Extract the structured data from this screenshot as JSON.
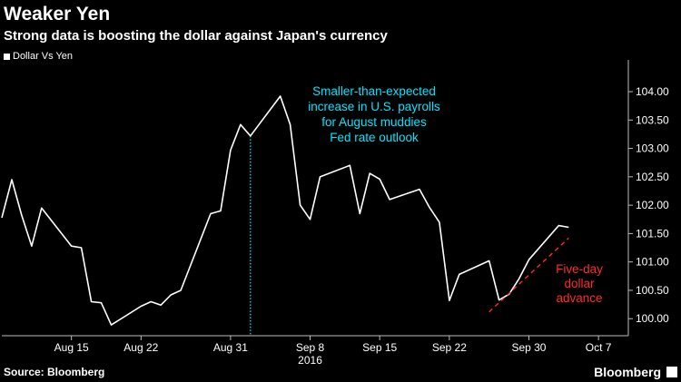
{
  "header": {
    "title": "Weaker Yen",
    "subtitle": "Strong data is boosting the dollar against Japan's currency"
  },
  "footer": {
    "source": "Source: Bloomberg",
    "brand": "Bloomberg"
  },
  "colors": {
    "background": "#000000",
    "line": "#ffffff",
    "annotation": "#00e5ff",
    "highlight": "#ff2a2a"
  },
  "chart_data": {
    "type": "line",
    "title": "Weaker Yen",
    "subtitle": "Strong data is boosting the dollar against Japan's currency",
    "legend": [
      "Dollar Vs Yen"
    ],
    "legend_position": "top-left",
    "grid": true,
    "ylim": [
      99.7,
      104.4
    ],
    "y_axis_side": "right",
    "y_ticks": [
      "100.00",
      "100.50",
      "101.00",
      "101.50",
      "102.00",
      "102.50",
      "103.00",
      "103.50",
      "104.00"
    ],
    "x_ticks": [
      "Aug 15",
      "Aug 22",
      "Aug 31",
      "Sep 8",
      "Sep 15",
      "Sep 22",
      "Sep 30",
      "Oct 7"
    ],
    "x_year_label": "2016",
    "series": [
      {
        "name": "Dollar Vs Yen",
        "x": [
          "Aug 8",
          "Aug 9",
          "Aug 10",
          "Aug 11",
          "Aug 12",
          "Aug 15",
          "Aug 16",
          "Aug 17",
          "Aug 18",
          "Aug 19",
          "Aug 22",
          "Aug 23",
          "Aug 24",
          "Aug 25",
          "Aug 26",
          "Aug 29",
          "Aug 30",
          "Aug 31",
          "Sep 1",
          "Sep 2",
          "Sep 5",
          "Sep 6",
          "Sep 7",
          "Sep 8",
          "Sep 9",
          "Sep 12",
          "Sep 13",
          "Sep 14",
          "Sep 15",
          "Sep 16",
          "Sep 19",
          "Sep 20",
          "Sep 21",
          "Sep 22",
          "Sep 23",
          "Sep 26",
          "Sep 27",
          "Sep 28",
          "Sep 29",
          "Sep 30",
          "Oct 3",
          "Oct 4"
        ],
        "values": [
          101.78,
          102.45,
          101.82,
          101.28,
          101.95,
          101.28,
          101.25,
          100.3,
          100.28,
          99.89,
          100.22,
          100.3,
          100.24,
          100.42,
          100.5,
          101.85,
          101.9,
          102.97,
          103.42,
          103.22,
          103.92,
          103.42,
          102.0,
          101.75,
          102.5,
          102.7,
          101.85,
          102.56,
          102.46,
          102.1,
          102.28,
          101.96,
          101.7,
          100.32,
          100.78,
          101.02,
          100.33,
          100.43,
          100.7,
          101.04,
          101.64,
          101.61
        ]
      }
    ],
    "annotations": [
      {
        "text": "Smaller-than-expected increase in U.S. payrolls for August muddies Fed rate outlook",
        "at": "Sep 2",
        "style": "dotted-vertical",
        "color": "#00e5ff"
      },
      {
        "text": "Five-day dollar advance",
        "from": [
          "Sep 26",
          100.12
        ],
        "to": [
          "Oct 4",
          101.42
        ],
        "style": "dashed",
        "color": "#ff2a2a"
      }
    ]
  }
}
